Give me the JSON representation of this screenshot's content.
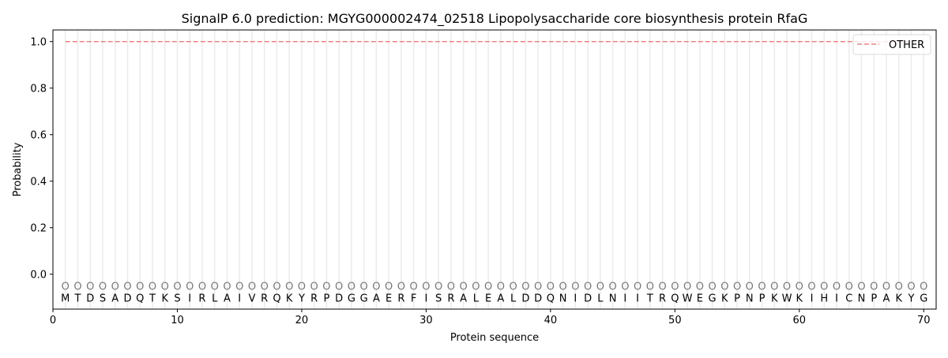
{
  "chart_data": {
    "type": "line",
    "title": "SignalP 6.0 prediction: MGYG000002474_02518 Lipopolysaccharide core biosynthesis protein RfaG",
    "xlabel": "Protein sequence",
    "ylabel": "Probability",
    "xlim": [
      0,
      71
    ],
    "ylim": [
      -0.15,
      1.05
    ],
    "xticks": [
      0,
      10,
      20,
      30,
      40,
      50,
      60,
      70
    ],
    "yticks": [
      0.0,
      0.2,
      0.4,
      0.6,
      0.8,
      1.0
    ],
    "ytick_labels": [
      "0.0",
      "0.2",
      "0.4",
      "0.6",
      "0.8",
      "1.0"
    ],
    "sequence": "MTDSADQTKSIRLAIVRQKYRPDGGAERFISRALEALDDQNIDLNIITRQWEGKPNPKWKIHICNPAKYG",
    "region_label": "O",
    "grid": "vertical lines at each residue",
    "legend_position": "top-right",
    "series": [
      {
        "name": "OTHER",
        "color": "#f08080",
        "style": "dashed",
        "x_range": [
          1,
          70
        ],
        "value": 1.0
      }
    ]
  }
}
